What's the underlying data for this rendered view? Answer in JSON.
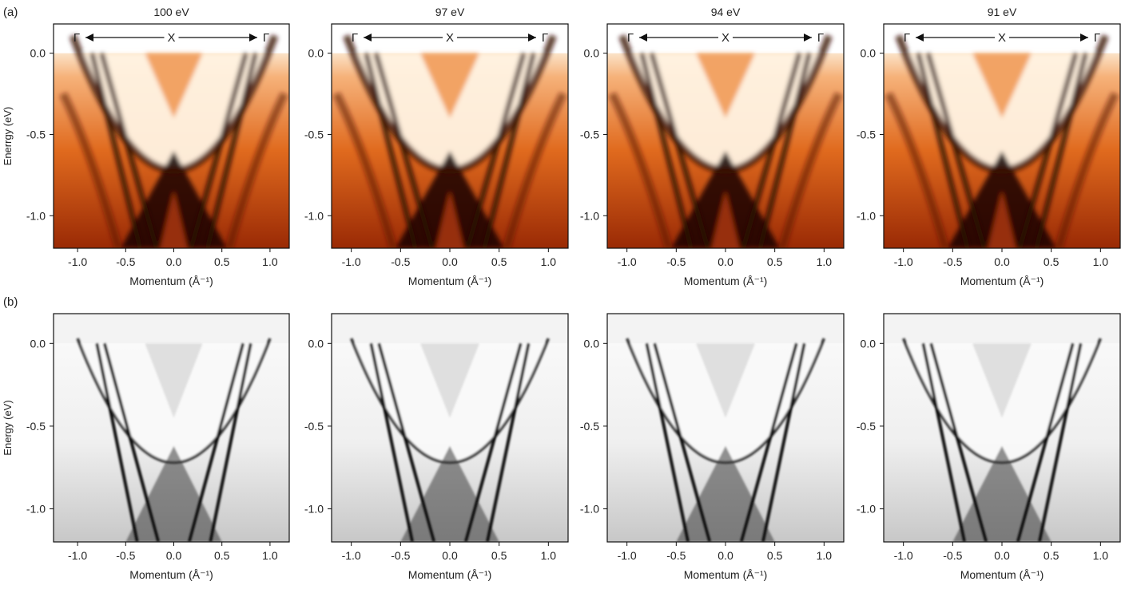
{
  "chart_data": [
    {
      "type": "heatmap",
      "panel_label": "(a)",
      "title": "100 eV",
      "xlabel": "Momentum (Å⁻¹)",
      "ylabel": "Enerrgy (eV)",
      "xlim": [
        -1.25,
        1.2
      ],
      "ylim": [
        -1.2,
        0.18
      ],
      "xticks": [
        -1.0,
        -0.5,
        0.0,
        0.5,
        1.0
      ],
      "yticks": [
        0.0,
        -0.5,
        -1.0
      ],
      "annotation": {
        "left": "Γ",
        "center": "X",
        "right": "Γ"
      },
      "colormap": "hot"
    },
    {
      "type": "heatmap",
      "title": "97 eV",
      "xlabel": "Momentum (Å⁻¹)",
      "xlim": [
        -1.2,
        1.2
      ],
      "ylim": [
        -1.2,
        0.18
      ],
      "xticks": [
        -1.0,
        -0.5,
        0.0,
        0.5,
        1.0
      ],
      "yticks": [
        0.0,
        -0.5,
        -1.0
      ],
      "annotation": {
        "left": "Γ",
        "center": "X",
        "right": "Γ"
      },
      "colormap": "hot"
    },
    {
      "type": "heatmap",
      "title": "94 eV",
      "xlabel": "Momentum (Å⁻¹)",
      "xlim": [
        -1.2,
        1.2
      ],
      "ylim": [
        -1.2,
        0.18
      ],
      "xticks": [
        -1.0,
        -0.5,
        0.0,
        0.5,
        1.0
      ],
      "yticks": [
        0.0,
        -0.5,
        -1.0
      ],
      "annotation": {
        "left": "Γ",
        "center": "X",
        "right": "Γ"
      },
      "colormap": "hot"
    },
    {
      "type": "heatmap",
      "title": "91 eV",
      "xlabel": "Momentum (Å⁻¹)",
      "xlim": [
        -1.2,
        1.2
      ],
      "ylim": [
        -1.2,
        0.18
      ],
      "xticks": [
        -1.0,
        -0.5,
        0.0,
        0.5,
        1.0
      ],
      "yticks": [
        0.0,
        -0.5,
        -1.0
      ],
      "annotation": {
        "left": "Γ",
        "center": "X",
        "right": "Γ"
      },
      "colormap": "hot"
    },
    {
      "type": "heatmap",
      "panel_label": "(b)",
      "xlabel": "Momentum (Å⁻¹)",
      "ylabel": "Energy (eV)",
      "xlim": [
        -1.25,
        1.2
      ],
      "ylim": [
        -1.2,
        0.18
      ],
      "xticks": [
        -1.0,
        -0.5,
        0.0,
        0.5,
        1.0
      ],
      "yticks": [
        0.0,
        -0.5,
        -1.0
      ],
      "colormap": "gray"
    },
    {
      "type": "heatmap",
      "xlabel": "Momentum (Å⁻¹)",
      "xlim": [
        -1.2,
        1.2
      ],
      "ylim": [
        -1.2,
        0.18
      ],
      "xticks": [
        -1.0,
        -0.5,
        0.0,
        0.5,
        1.0
      ],
      "yticks": [
        0.0,
        -0.5,
        -1.0
      ],
      "colormap": "gray"
    },
    {
      "type": "heatmap",
      "xlabel": "Momentum (Å⁻¹)",
      "xlim": [
        -1.2,
        1.2
      ],
      "ylim": [
        -1.2,
        0.18
      ],
      "xticks": [
        -1.0,
        -0.5,
        0.0,
        0.5,
        1.0
      ],
      "yticks": [
        0.0,
        -0.5,
        -1.0
      ],
      "colormap": "gray"
    },
    {
      "type": "heatmap",
      "xlabel": "Momentum (Å⁻¹)",
      "xlim": [
        -1.2,
        1.2
      ],
      "ylim": [
        -1.2,
        0.18
      ],
      "xticks": [
        -1.0,
        -0.5,
        0.0,
        0.5,
        1.0
      ],
      "yticks": [
        0.0,
        -0.5,
        -1.0
      ],
      "colormap": "gray"
    }
  ]
}
